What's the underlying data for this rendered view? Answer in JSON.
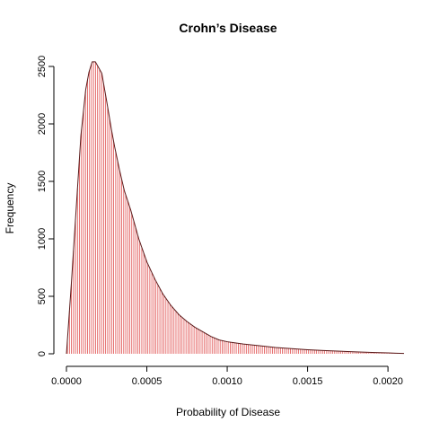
{
  "chart_data": {
    "type": "area",
    "title": "Crohn’s Disease",
    "xlabel": "Probability of Disease",
    "ylabel": "Frequency",
    "xlim": [
      0.0,
      0.0021
    ],
    "ylim": [
      0,
      2550
    ],
    "xticks": [
      0.0,
      0.0005,
      0.001,
      0.0015,
      0.002
    ],
    "xtick_labels": [
      "0.0000",
      "0.0005",
      "0.0010",
      "0.0015",
      "0.0020"
    ],
    "yticks": [
      0,
      500,
      1000,
      1500,
      2000,
      2500
    ],
    "ytick_labels": [
      "0",
      "500",
      "1000",
      "1500",
      "2000",
      "2500"
    ],
    "grid": false,
    "legend": "none",
    "series": [
      {
        "x": [
          0.0,
          3e-05,
          6e-05,
          9e-05,
          0.00012,
          0.00014,
          0.00016,
          0.00018,
          0.0002,
          0.00022,
          0.00025,
          0.00028,
          0.0003,
          0.00033,
          0.00036,
          0.0004,
          0.00045,
          0.0005,
          0.00055,
          0.0006,
          0.00065,
          0.0007,
          0.00075,
          0.0008,
          0.00085,
          0.0009,
          0.00095,
          0.001,
          0.00105,
          0.0011,
          0.0012,
          0.0013,
          0.0014,
          0.0015,
          0.0016,
          0.0017,
          0.0018,
          0.0019,
          0.002,
          0.00205,
          0.0021
        ],
        "y": [
          0,
          600,
          1250,
          1900,
          2300,
          2450,
          2540,
          2540,
          2490,
          2440,
          2200,
          1950,
          1800,
          1600,
          1420,
          1250,
          1000,
          800,
          650,
          520,
          420,
          340,
          280,
          230,
          190,
          150,
          120,
          105,
          95,
          85,
          70,
          55,
          45,
          35,
          28,
          22,
          17,
          12,
          8,
          5,
          3
        ]
      }
    ],
    "colors": {
      "spike": "#e05050",
      "curve": "#5a1a1a"
    }
  }
}
